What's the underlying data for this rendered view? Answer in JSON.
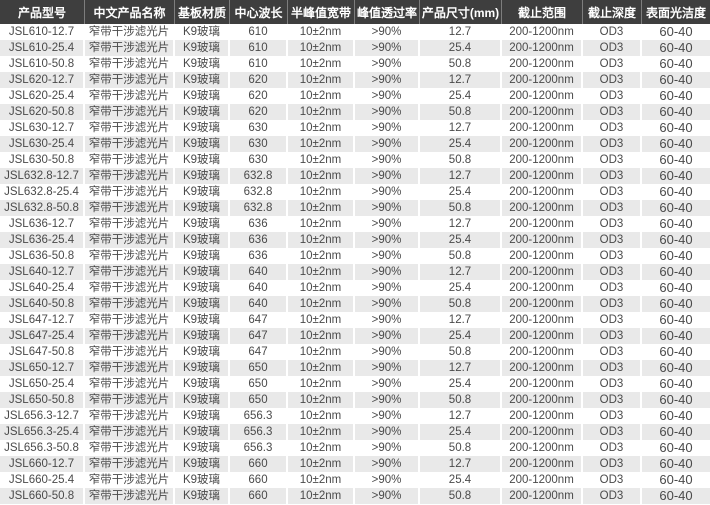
{
  "colors": {
    "header_bg": "#3e3e3e",
    "header_text": "#ffffff",
    "header_separator": "#7d7d7d",
    "row_stripe": "#e9e9e9",
    "row_plain": "#ffffff",
    "cell_text": "#4a4a4a"
  },
  "table": {
    "columns": [
      {
        "key": "model",
        "label": "产品型号"
      },
      {
        "key": "name",
        "label": "中文产品名称"
      },
      {
        "key": "substrate",
        "label": "基板材质"
      },
      {
        "key": "center-wavelength",
        "label": "中心波长"
      },
      {
        "key": "bandwidth",
        "label": "半峰值宽带"
      },
      {
        "key": "transmittance",
        "label": "峰值透过率"
      },
      {
        "key": "size",
        "label": "产品尺寸(mm)"
      },
      {
        "key": "cutoff-range",
        "label": "截止范围"
      },
      {
        "key": "cutoff-depth",
        "label": "截止深度"
      },
      {
        "key": "surface-quality",
        "label": "表面光洁度"
      }
    ],
    "rows": [
      [
        "JSL610-12.7",
        "窄带干涉滤光片",
        "K9玻璃",
        "610",
        "10±2nm",
        ">90%",
        "12.7",
        "200-1200nm",
        "OD3",
        "60-40"
      ],
      [
        "JSL610-25.4",
        "窄带干涉滤光片",
        "K9玻璃",
        "610",
        "10±2nm",
        ">90%",
        "25.4",
        "200-1200nm",
        "OD3",
        "60-40"
      ],
      [
        "JSL610-50.8",
        "窄带干涉滤光片",
        "K9玻璃",
        "610",
        "10±2nm",
        ">90%",
        "50.8",
        "200-1200nm",
        "OD3",
        "60-40"
      ],
      [
        "JSL620-12.7",
        "窄带干涉滤光片",
        "K9玻璃",
        "620",
        "10±2nm",
        ">90%",
        "12.7",
        "200-1200nm",
        "OD3",
        "60-40"
      ],
      [
        "JSL620-25.4",
        "窄带干涉滤光片",
        "K9玻璃",
        "620",
        "10±2nm",
        ">90%",
        "25.4",
        "200-1200nm",
        "OD3",
        "60-40"
      ],
      [
        "JSL620-50.8",
        "窄带干涉滤光片",
        "K9玻璃",
        "620",
        "10±2nm",
        ">90%",
        "50.8",
        "200-1200nm",
        "OD3",
        "60-40"
      ],
      [
        "JSL630-12.7",
        "窄带干涉滤光片",
        "K9玻璃",
        "630",
        "10±2nm",
        ">90%",
        "12.7",
        "200-1200nm",
        "OD3",
        "60-40"
      ],
      [
        "JSL630-25.4",
        "窄带干涉滤光片",
        "K9玻璃",
        "630",
        "10±2nm",
        ">90%",
        "25.4",
        "200-1200nm",
        "OD3",
        "60-40"
      ],
      [
        "JSL630-50.8",
        "窄带干涉滤光片",
        "K9玻璃",
        "630",
        "10±2nm",
        ">90%",
        "50.8",
        "200-1200nm",
        "OD3",
        "60-40"
      ],
      [
        "JSL632.8-12.7",
        "窄带干涉滤光片",
        "K9玻璃",
        "632.8",
        "10±2nm",
        ">90%",
        "12.7",
        "200-1200nm",
        "OD3",
        "60-40"
      ],
      [
        "JSL632.8-25.4",
        "窄带干涉滤光片",
        "K9玻璃",
        "632.8",
        "10±2nm",
        ">90%",
        "25.4",
        "200-1200nm",
        "OD3",
        "60-40"
      ],
      [
        "JSL632.8-50.8",
        "窄带干涉滤光片",
        "K9玻璃",
        "632.8",
        "10±2nm",
        ">90%",
        "50.8",
        "200-1200nm",
        "OD3",
        "60-40"
      ],
      [
        "JSL636-12.7",
        "窄带干涉滤光片",
        "K9玻璃",
        "636",
        "10±2nm",
        ">90%",
        "12.7",
        "200-1200nm",
        "OD3",
        "60-40"
      ],
      [
        "JSL636-25.4",
        "窄带干涉滤光片",
        "K9玻璃",
        "636",
        "10±2nm",
        ">90%",
        "25.4",
        "200-1200nm",
        "OD3",
        "60-40"
      ],
      [
        "JSL636-50.8",
        "窄带干涉滤光片",
        "K9玻璃",
        "636",
        "10±2nm",
        ">90%",
        "50.8",
        "200-1200nm",
        "OD3",
        "60-40"
      ],
      [
        "JSL640-12.7",
        "窄带干涉滤光片",
        "K9玻璃",
        "640",
        "10±2nm",
        ">90%",
        "12.7",
        "200-1200nm",
        "OD3",
        "60-40"
      ],
      [
        "JSL640-25.4",
        "窄带干涉滤光片",
        "K9玻璃",
        "640",
        "10±2nm",
        ">90%",
        "25.4",
        "200-1200nm",
        "OD3",
        "60-40"
      ],
      [
        "JSL640-50.8",
        "窄带干涉滤光片",
        "K9玻璃",
        "640",
        "10±2nm",
        ">90%",
        "50.8",
        "200-1200nm",
        "OD3",
        "60-40"
      ],
      [
        "JSL647-12.7",
        "窄带干涉滤光片",
        "K9玻璃",
        "647",
        "10±2nm",
        ">90%",
        "12.7",
        "200-1200nm",
        "OD3",
        "60-40"
      ],
      [
        "JSL647-25.4",
        "窄带干涉滤光片",
        "K9玻璃",
        "647",
        "10±2nm",
        ">90%",
        "25.4",
        "200-1200nm",
        "OD3",
        "60-40"
      ],
      [
        "JSL647-50.8",
        "窄带干涉滤光片",
        "K9玻璃",
        "647",
        "10±2nm",
        ">90%",
        "50.8",
        "200-1200nm",
        "OD3",
        "60-40"
      ],
      [
        "JSL650-12.7",
        "窄带干涉滤光片",
        "K9玻璃",
        "650",
        "10±2nm",
        ">90%",
        "12.7",
        "200-1200nm",
        "OD3",
        "60-40"
      ],
      [
        "JSL650-25.4",
        "窄带干涉滤光片",
        "K9玻璃",
        "650",
        "10±2nm",
        ">90%",
        "25.4",
        "200-1200nm",
        "OD3",
        "60-40"
      ],
      [
        "JSL650-50.8",
        "窄带干涉滤光片",
        "K9玻璃",
        "650",
        "10±2nm",
        ">90%",
        "50.8",
        "200-1200nm",
        "OD3",
        "60-40"
      ],
      [
        "JSL656.3-12.7",
        "窄带干涉滤光片",
        "K9玻璃",
        "656.3",
        "10±2nm",
        ">90%",
        "12.7",
        "200-1200nm",
        "OD3",
        "60-40"
      ],
      [
        "JSL656.3-25.4",
        "窄带干涉滤光片",
        "K9玻璃",
        "656.3",
        "10±2nm",
        ">90%",
        "25.4",
        "200-1200nm",
        "OD3",
        "60-40"
      ],
      [
        "JSL656.3-50.8",
        "窄带干涉滤光片",
        "K9玻璃",
        "656.3",
        "10±2nm",
        ">90%",
        "50.8",
        "200-1200nm",
        "OD3",
        "60-40"
      ],
      [
        "JSL660-12.7",
        "窄带干涉滤光片",
        "K9玻璃",
        "660",
        "10±2nm",
        ">90%",
        "12.7",
        "200-1200nm",
        "OD3",
        "60-40"
      ],
      [
        "JSL660-25.4",
        "窄带干涉滤光片",
        "K9玻璃",
        "660",
        "10±2nm",
        ">90%",
        "25.4",
        "200-1200nm",
        "OD3",
        "60-40"
      ],
      [
        "JSL660-50.8",
        "窄带干涉滤光片",
        "K9玻璃",
        "660",
        "10±2nm",
        ">90%",
        "50.8",
        "200-1200nm",
        "OD3",
        "60-40"
      ]
    ]
  }
}
